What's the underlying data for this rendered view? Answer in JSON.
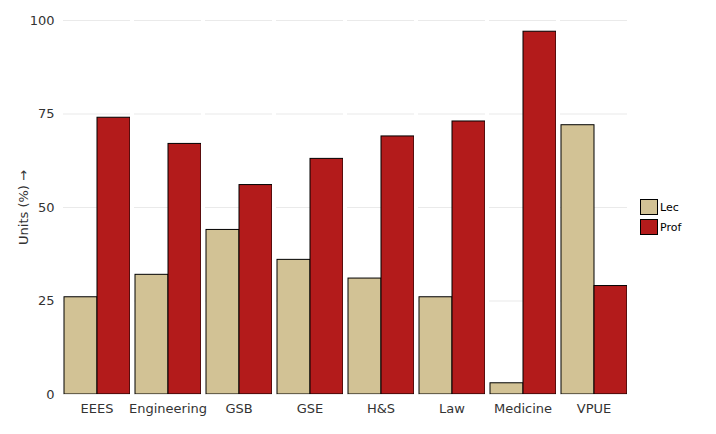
{
  "chart_data": {
    "type": "bar",
    "y_label": "Units (%)",
    "categories": [
      "EEES",
      "Engineering",
      "GSB",
      "GSE",
      "H&S",
      "Law",
      "Medicine",
      "VPUE"
    ],
    "series": [
      {
        "name": "Lec",
        "color": "#d2c295",
        "values": [
          26,
          32,
          44,
          36,
          31,
          26,
          3,
          72
        ]
      },
      {
        "name": "Prof",
        "color": "#b31b1b",
        "values": [
          74,
          67,
          56,
          63,
          69,
          73,
          97,
          29
        ]
      }
    ],
    "ylim": [
      0,
      100
    ],
    "yticks": [
      0,
      25,
      50,
      75,
      100
    ],
    "grid": true,
    "legend": "right"
  }
}
